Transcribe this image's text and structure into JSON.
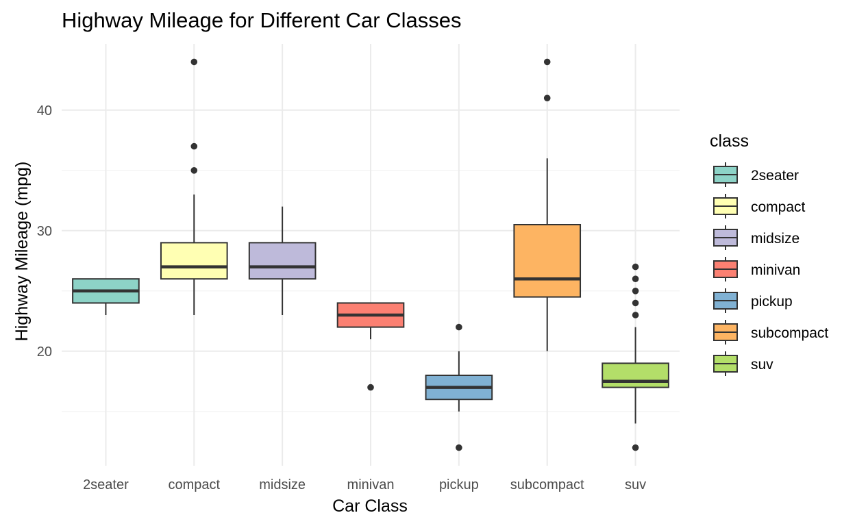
{
  "chart_data": {
    "type": "boxplot",
    "title": "Highway Mileage for Different Car Classes",
    "xlabel": "Car Class",
    "ylabel": "Highway Mileage (mpg)",
    "ylim": [
      10.5,
      45.5
    ],
    "yticks": [
      20,
      30,
      40
    ],
    "y_minor_ticks": [
      15,
      25,
      35
    ],
    "grid": true,
    "legend": {
      "title": "class",
      "position": "right"
    },
    "categories": [
      "2seater",
      "compact",
      "midsize",
      "minivan",
      "pickup",
      "subcompact",
      "suv"
    ],
    "colors": [
      "#8DD3C7",
      "#FFFFB3",
      "#BEBADA",
      "#FB8072",
      "#80B1D3",
      "#FDB462",
      "#B3DE69"
    ],
    "boxes": [
      {
        "category": "2seater",
        "lower_whisker": 23,
        "q1": 24,
        "median": 25,
        "q3": 26,
        "upper_whisker": 26,
        "outliers": []
      },
      {
        "category": "compact",
        "lower_whisker": 23,
        "q1": 26,
        "median": 27,
        "q3": 29,
        "upper_whisker": 33,
        "outliers": [
          35,
          37,
          44
        ]
      },
      {
        "category": "midsize",
        "lower_whisker": 23,
        "q1": 26,
        "median": 27,
        "q3": 29,
        "upper_whisker": 32,
        "outliers": []
      },
      {
        "category": "minivan",
        "lower_whisker": 21,
        "q1": 22,
        "median": 23,
        "q3": 24,
        "upper_whisker": 24,
        "outliers": [
          17
        ]
      },
      {
        "category": "pickup",
        "lower_whisker": 15,
        "q1": 16,
        "median": 17,
        "q3": 18,
        "upper_whisker": 20,
        "outliers": [
          12,
          22
        ]
      },
      {
        "category": "subcompact",
        "lower_whisker": 20,
        "q1": 24.5,
        "median": 26,
        "q3": 30.5,
        "upper_whisker": 36,
        "outliers": [
          41,
          44
        ]
      },
      {
        "category": "suv",
        "lower_whisker": 14,
        "q1": 17,
        "median": 17.5,
        "q3": 19,
        "upper_whisker": 22,
        "outliers": [
          12,
          23,
          24,
          25,
          26,
          27
        ]
      }
    ]
  }
}
